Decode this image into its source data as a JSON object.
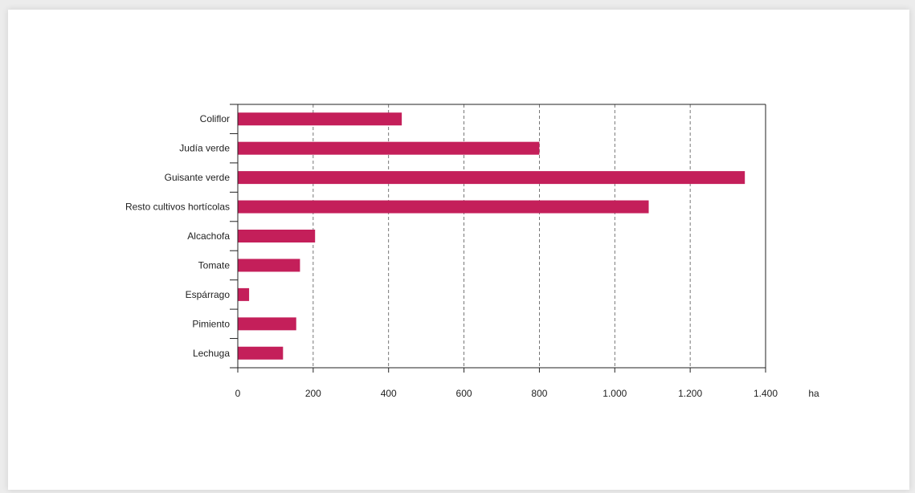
{
  "chart_data": {
    "type": "bar",
    "orientation": "horizontal",
    "title": "",
    "xlabel": "ha",
    "ylabel": "",
    "categories": [
      "Coliflor",
      "Judía verde",
      "Guisante verde",
      "Resto cultivos hortícolas",
      "Alcachofa",
      "Tomate",
      "Espárrago",
      "Pimiento",
      "Lechuga"
    ],
    "values": [
      435,
      800,
      1345,
      1090,
      205,
      165,
      30,
      155,
      120
    ],
    "xlim": [
      0,
      1400
    ],
    "xticks": [
      0,
      200,
      400,
      600,
      800,
      1000,
      1200,
      1400
    ],
    "xtick_labels": [
      "0",
      "200",
      "400",
      "600",
      "800",
      "1.000",
      "1.200",
      "1.400"
    ],
    "bar_color": "#c41f5a",
    "grid": "vertical-dashed",
    "legend": "none"
  }
}
